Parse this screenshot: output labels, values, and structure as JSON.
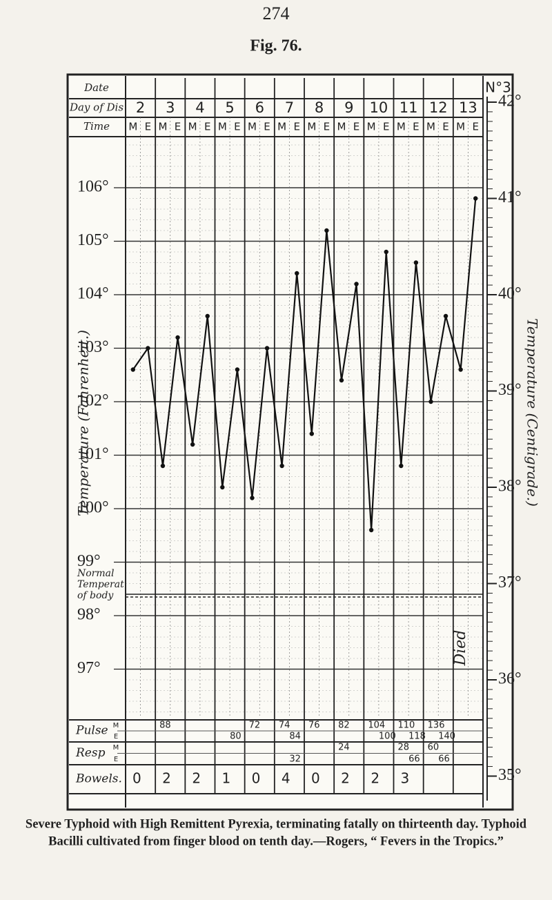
{
  "page_number": "274",
  "figure_label": "Fig. 76.",
  "chart": {
    "number_label": "N°3",
    "row_labels": {
      "date": "Date",
      "day": "Day of Dis",
      "time": "Time",
      "pulse": "Pulse",
      "resp": "Resp",
      "bowels": "Bowels."
    },
    "time_labels": [
      "M",
      "E"
    ],
    "days": [
      2,
      3,
      4,
      5,
      6,
      7,
      8,
      9,
      10,
      11,
      12,
      13
    ],
    "fahrenheit_title": "Temperature (Fahrenheit.)",
    "centigrade_title": "Temperature (Centigrade.)",
    "normal_label": "Normal Temperat of body",
    "normal_value": 98.4,
    "death_note": "Died",
    "fahrenheit_ticks": [
      {
        "value": 106,
        "label": "106°"
      },
      {
        "value": 105,
        "label": "105°"
      },
      {
        "value": 104,
        "label": "104°"
      },
      {
        "value": 103,
        "label": "103°"
      },
      {
        "value": 102,
        "label": "102°"
      },
      {
        "value": 101,
        "label": "101°"
      },
      {
        "value": 100,
        "label": "100°"
      },
      {
        "value": 99,
        "label": "99°"
      },
      {
        "value": 98,
        "label": "98°"
      },
      {
        "value": 97,
        "label": "97°"
      }
    ],
    "centigrade_ticks": [
      {
        "value": 42,
        "label": "42°"
      },
      {
        "value": 41,
        "label": "41°"
      },
      {
        "value": 40,
        "label": "40°"
      },
      {
        "value": 39,
        "label": "39°"
      },
      {
        "value": 38,
        "label": "38°"
      },
      {
        "value": 37,
        "label": "37°"
      },
      {
        "value": 36,
        "label": "36°"
      },
      {
        "value": 35,
        "label": "35°"
      }
    ],
    "temperature": [
      102.6,
      103.0,
      100.8,
      103.2,
      101.2,
      103.6,
      100.4,
      102.6,
      100.2,
      103.0,
      100.8,
      104.4,
      101.4,
      105.2,
      102.4,
      104.2,
      99.6,
      104.8,
      100.8,
      104.6,
      102.0,
      103.6,
      102.6,
      105.8
    ],
    "pulse_morning": [
      null,
      88,
      null,
      null,
      72,
      74,
      76,
      82,
      104,
      110,
      136,
      null
    ],
    "pulse_evening": [
      null,
      null,
      null,
      80,
      null,
      84,
      null,
      null,
      100,
      118,
      140,
      null
    ],
    "resp_morning": [
      null,
      null,
      null,
      null,
      null,
      null,
      null,
      24,
      null,
      28,
      60,
      null
    ],
    "resp_evening": [
      null,
      null,
      null,
      null,
      null,
      32,
      null,
      null,
      null,
      66,
      66,
      null
    ],
    "bowels": [
      0,
      2,
      2,
      1,
      0,
      4,
      0,
      2,
      2,
      3,
      null,
      null
    ]
  },
  "caption": [
    "Severe Typhoid with High Remittent Pyrexia, terminating fatally on thirteenth day. Typhoid",
    "Bacilli cultivated from finger blood on tenth day.—Rogers, “ Fevers in the Tropics.”"
  ]
}
